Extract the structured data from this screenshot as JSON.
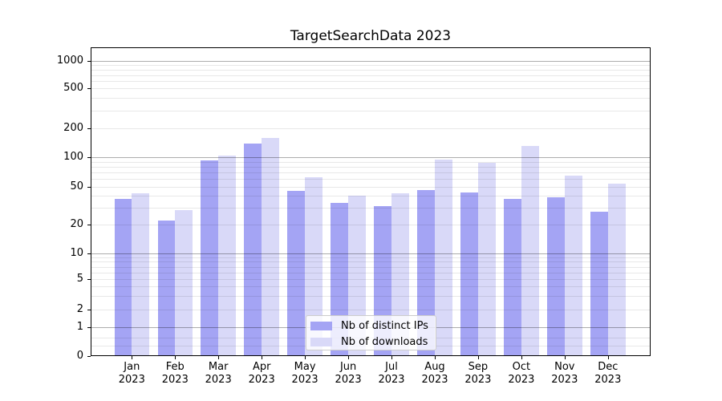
{
  "title": "TargetSearchData 2023",
  "colors": {
    "bar_distinct_ips": "#a4a4f4",
    "bar_downloads": "#d9d9f8",
    "grid_major": "rgba(0,0,0,0.32)",
    "grid_minor": "rgba(0,0,0,0.09)",
    "axis": "#000000",
    "legend_border": "#cccccc"
  },
  "x_axis": {
    "months": [
      "Jan",
      "Feb",
      "Mar",
      "Apr",
      "May",
      "Jun",
      "Jul",
      "Aug",
      "Sep",
      "Oct",
      "Nov",
      "Dec"
    ],
    "year": "2023"
  },
  "y_axis": {
    "tick_labels": [
      "0",
      "1",
      "2",
      "5",
      "10",
      "20",
      "50",
      "100",
      "200",
      "500",
      "1000"
    ]
  },
  "chart_data": {
    "type": "bar",
    "title": "TargetSearchData 2023",
    "categories": [
      "Jan 2023",
      "Feb 2023",
      "Mar 2023",
      "Apr 2023",
      "May 2023",
      "Jun 2023",
      "Jul 2023",
      "Aug 2023",
      "Sep 2023",
      "Oct 2023",
      "Nov 2023",
      "Dec 2023"
    ],
    "series": [
      {
        "name": "Nb of distinct IPs",
        "color": "#a4a4f4",
        "values": [
          37,
          22,
          93,
          139,
          45,
          34,
          31,
          46,
          44,
          37,
          39,
          27
        ]
      },
      {
        "name": "Nb of downloads",
        "color": "#d9d9f8",
        "values": [
          43,
          28,
          105,
          159,
          63,
          40,
          43,
          95,
          88,
          131,
          65,
          54
        ]
      }
    ],
    "xlabel": "",
    "ylabel": "",
    "yscale": "symlog",
    "y_ticks": [
      0,
      1,
      2,
      5,
      10,
      20,
      50,
      100,
      200,
      500,
      1000
    ],
    "y_minor_ticks": [
      0.35,
      0.65,
      2,
      3,
      4,
      5,
      6,
      7,
      8,
      9,
      20,
      30,
      40,
      50,
      60,
      70,
      80,
      90,
      200,
      300,
      400,
      500,
      600,
      700,
      800,
      900
    ],
    "y_major_gridlines": [
      1,
      10,
      100,
      1000
    ],
    "ylim": [
      0,
      1400
    ],
    "grid": "both",
    "legend_position": "lower center"
  }
}
